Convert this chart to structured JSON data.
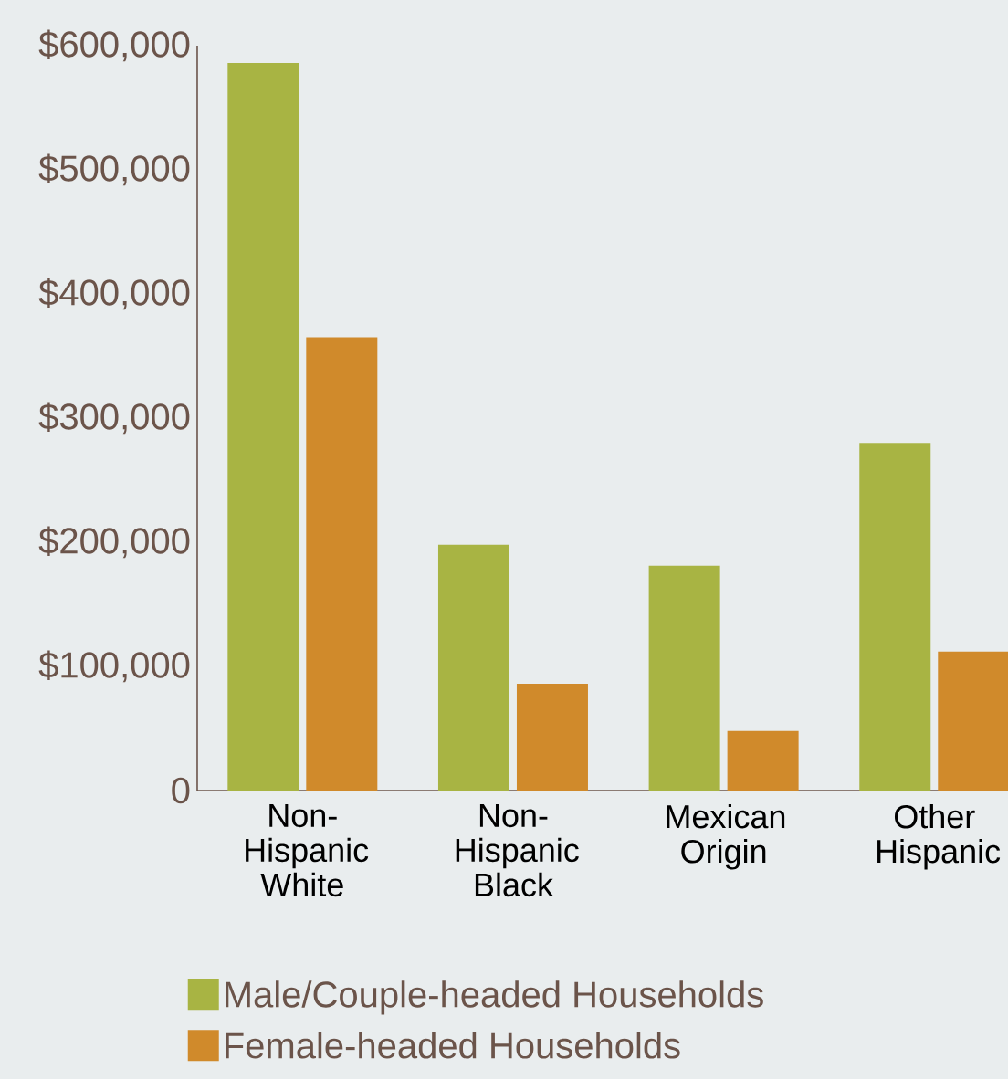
{
  "chart_data": {
    "type": "bar",
    "categories": [
      "Non-Hispanic White",
      "Non-Hispanic Black",
      "Mexican Origin",
      "Other Hispanic"
    ],
    "series": [
      {
        "name": "Male/Couple-headed Households",
        "color": "#a8b443",
        "values": [
          586000,
          198000,
          181000,
          280000
        ]
      },
      {
        "name": "Female-headed Households",
        "color": "#d08a2b",
        "values": [
          365000,
          86000,
          48000,
          112000
        ]
      }
    ],
    "ylim": [
      0,
      600000
    ],
    "yticks": [
      0,
      {
        "value": 100000,
        "label": "$100,000"
      },
      {
        "value": 200000,
        "label": "$200,000"
      },
      {
        "value": 300000,
        "label": "$300,000"
      },
      {
        "value": 400000,
        "label": "$400,000"
      },
      {
        "value": 500000,
        "label": "$500,000"
      },
      {
        "value": 600000,
        "label": "$600,000"
      }
    ],
    "legend": "bottom left"
  }
}
